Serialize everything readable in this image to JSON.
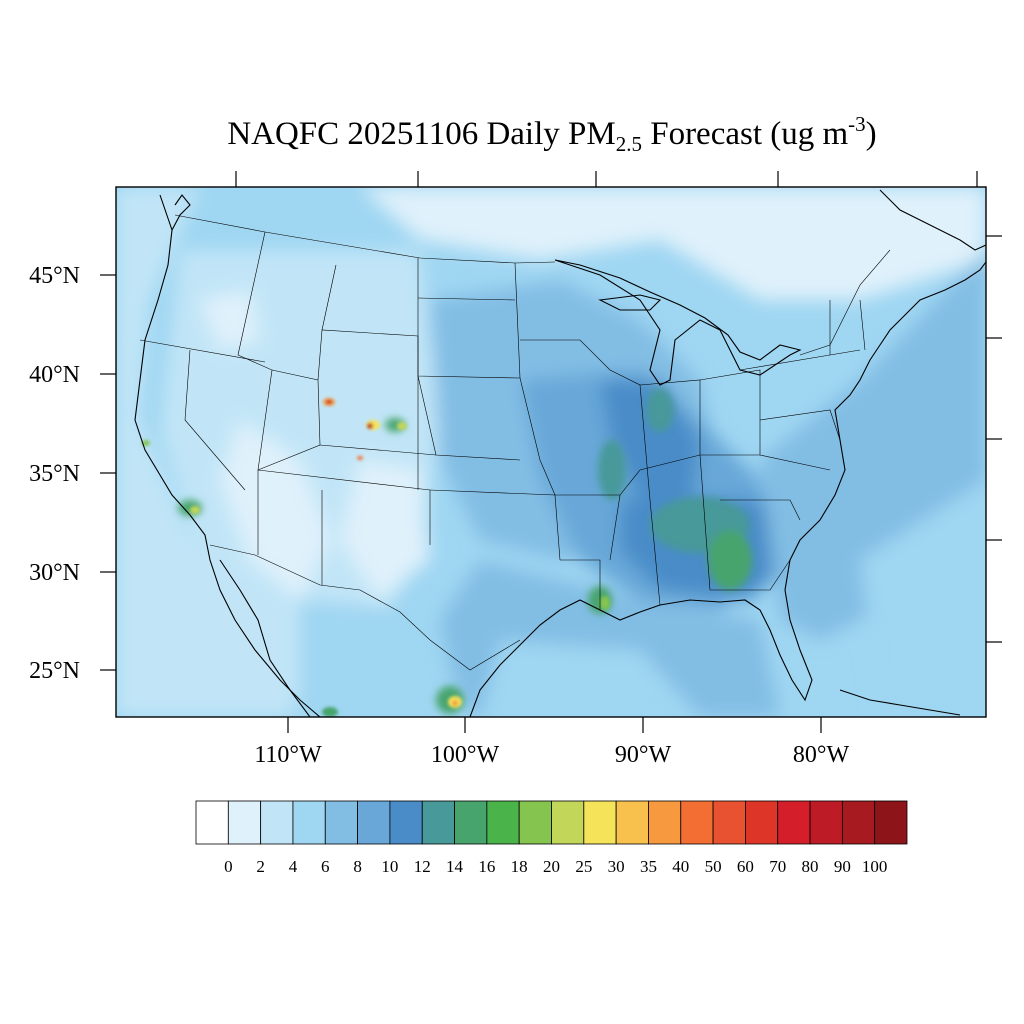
{
  "title": {
    "prefix": "NAQFC 20251106 Daily PM",
    "subscript": "2.5",
    "middle": " Forecast (ug m",
    "superscript": "-3",
    "suffix": ")"
  },
  "axes": {
    "lat_labels": [
      "45°N",
      "40°N",
      "35°N",
      "30°N",
      "25°N"
    ],
    "lon_labels": [
      "110°W",
      "100°W",
      "90°W",
      "80°W"
    ]
  },
  "colorbar": {
    "labels": [
      "0",
      "2",
      "4",
      "6",
      "8",
      "10",
      "12",
      "14",
      "16",
      "18",
      "20",
      "25",
      "30",
      "35",
      "40",
      "50",
      "60",
      "70",
      "80",
      "90",
      "100"
    ],
    "colors": [
      "#ffffff",
      "#dff1fb",
      "#c1e5f7",
      "#9fd6f2",
      "#82bde4",
      "#68a7d8",
      "#4a8cc8",
      "#47999a",
      "#47a46d",
      "#4ab34a",
      "#84c44f",
      "#c2d65a",
      "#f5e35a",
      "#f8c04c",
      "#f7993f",
      "#f26e32",
      "#e85230",
      "#de3529",
      "#d41f2a",
      "#bd1c26",
      "#a71b20",
      "#8d1519"
    ]
  }
}
